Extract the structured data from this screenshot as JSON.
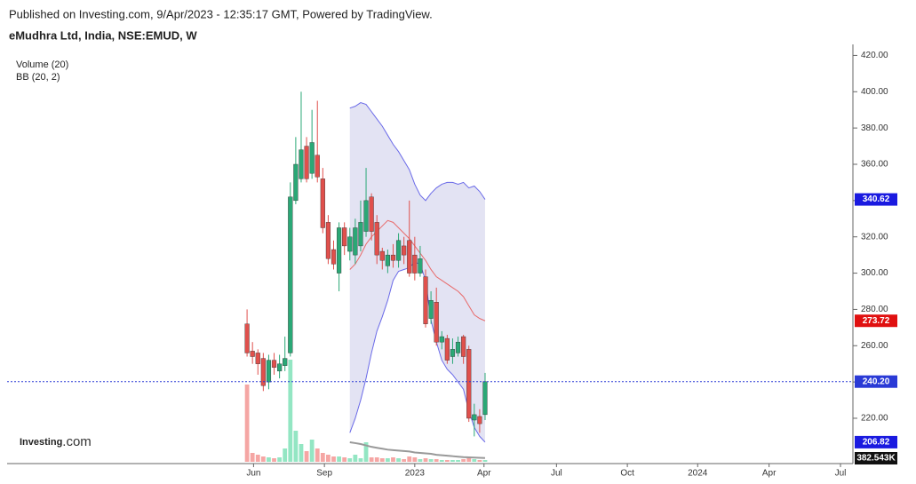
{
  "chart_data": {
    "type": "candlestick",
    "source": "Published on Investing.com, 9/Apr/2023 - 12:35:17 GMT, Powered by TradingView.",
    "title": "eMudhra Ltd, India, NSE:EMUD, W",
    "indicators": [
      "Volume (20)",
      "BB (20, 2)"
    ],
    "logo": {
      "brand": "Investing",
      "suffix": ".com"
    },
    "xlim": [
      -1,
      112
    ],
    "xticks": [
      {
        "value": 1.2,
        "label": "Jun"
      },
      {
        "value": 14.3,
        "label": "Sep"
      },
      {
        "value": 31,
        "label": "2023"
      },
      {
        "value": 43.8,
        "label": "Apr"
      },
      {
        "value": 57.2,
        "label": "Jul"
      },
      {
        "value": 70.3,
        "label": "Oct"
      },
      {
        "value": 83.3,
        "label": "2024"
      },
      {
        "value": 96.5,
        "label": "Apr"
      },
      {
        "value": 109.7,
        "label": "Jul"
      }
    ],
    "ylim": [
      196,
      430
    ],
    "yticks": [
      {
        "value": 220,
        "label": "220.00"
      },
      {
        "value": 240,
        "label": "240.00"
      },
      {
        "value": 260,
        "label": "260.00"
      },
      {
        "value": 280,
        "label": "280.00"
      },
      {
        "value": 300,
        "label": "300.00"
      },
      {
        "value": 320,
        "label": "320.00"
      },
      {
        "value": 340,
        "label": "340.00"
      },
      {
        "value": 360,
        "label": "360.00"
      },
      {
        "value": 380,
        "label": "380.00"
      },
      {
        "value": 400,
        "label": "400.00"
      },
      {
        "value": 420,
        "label": "420.00"
      }
    ],
    "up_color": "#2aa876",
    "down_color": "#e0504c",
    "up_volume_color": "#93e6c3",
    "down_volume_color": "#f5a6a4",
    "open": [
      272,
      257,
      256,
      253,
      240,
      252,
      246,
      249,
      256,
      340,
      352,
      370,
      355,
      365,
      352,
      328,
      313,
      300,
      325,
      312,
      310,
      315,
      323,
      342,
      328,
      312,
      304,
      310,
      307,
      315,
      318,
      310,
      300,
      298,
      275,
      284,
      262,
      264,
      254,
      256,
      265,
      258,
      219,
      221,
      222
    ],
    "high": [
      280,
      262,
      258,
      256,
      255,
      256,
      255,
      265,
      350,
      375,
      400,
      375,
      390,
      395,
      358,
      332,
      318,
      328,
      328,
      325,
      330,
      340,
      358,
      344,
      332,
      314,
      313,
      316,
      322,
      320,
      340,
      320,
      315,
      302,
      290,
      292,
      268,
      266,
      264,
      265,
      266,
      260,
      228,
      225,
      245
    ],
    "low": [
      254,
      250,
      244,
      235,
      236,
      244,
      242,
      246,
      254,
      338,
      350,
      350,
      352,
      350,
      322,
      305,
      302,
      290,
      310,
      307,
      305,
      312,
      320,
      318,
      305,
      302,
      300,
      303,
      303,
      305,
      298,
      296,
      298,
      270,
      272,
      260,
      258,
      250,
      250,
      254,
      250,
      218,
      210,
      212,
      219
    ],
    "close": [
      256,
      254,
      250,
      238,
      252,
      248,
      250,
      253,
      342,
      360,
      368,
      352,
      372,
      353,
      325,
      308,
      305,
      325,
      315,
      320,
      325,
      328,
      340,
      323,
      310,
      307,
      310,
      307,
      318,
      310,
      300,
      300,
      308,
      272,
      285,
      262,
      265,
      252,
      258,
      262,
      254,
      220,
      222,
      217,
      240.2
    ],
    "last_label": "240.20",
    "last_color": "#2a3ad6",
    "volume": {
      "values": [
        16530000,
        1900000,
        1520000,
        1140000,
        950000,
        760000,
        950000,
        2850000,
        21850000,
        6650000,
        3800000,
        2280000,
        4750000,
        2850000,
        1900000,
        1520000,
        1140000,
        1140000,
        950000,
        760000,
        1520000,
        760000,
        4180000,
        950000,
        950000,
        760000,
        760000,
        950000,
        760000,
        570000,
        1140000,
        950000,
        570000,
        760000,
        570000,
        570000,
        380000,
        380000,
        380000,
        380000,
        570000,
        760000,
        570000,
        380000,
        382543
      ],
      "last_label": "382.543K",
      "last_color": "#111111",
      "ma": [
        null,
        null,
        null,
        null,
        null,
        null,
        null,
        null,
        null,
        null,
        null,
        null,
        null,
        null,
        null,
        null,
        null,
        null,
        null,
        4180000,
        4000000,
        3800000,
        3500000,
        3200000,
        3000000,
        2800000,
        2600000,
        2500000,
        2400000,
        2300000,
        2200000,
        2000000,
        1900000,
        1800000,
        1700000,
        1500000,
        1400000,
        1300000,
        1200000,
        1100000,
        1000000,
        950000,
        900000,
        850000,
        800000
      ],
      "ma_color": "#999999"
    },
    "bands": [
      {
        "color": "#6a6ae8",
        "last_label": "340.62",
        "tag_color": "#1a1ae0",
        "values": [
          null,
          null,
          null,
          null,
          null,
          null,
          null,
          null,
          null,
          null,
          null,
          null,
          null,
          null,
          null,
          null,
          null,
          null,
          null,
          391,
          392,
          394,
          393,
          389,
          385,
          381,
          376,
          371,
          367,
          362,
          357,
          349,
          343,
          340,
          344,
          347,
          349,
          350,
          350,
          349,
          350,
          347,
          348,
          345,
          340.62
        ]
      },
      {
        "color": "#e86a6a",
        "last_label": "273.72",
        "tag_color": "#e01010",
        "values": [
          null,
          null,
          null,
          null,
          null,
          null,
          null,
          null,
          null,
          null,
          null,
          null,
          null,
          null,
          null,
          null,
          null,
          null,
          null,
          302,
          305,
          310,
          316,
          320,
          323,
          326,
          329,
          328,
          325,
          322,
          319,
          315,
          311,
          307,
          302,
          298,
          296,
          294,
          292,
          290,
          287,
          282,
          277,
          275,
          273.72
        ]
      },
      {
        "color": "#6a6ae8",
        "last_label": "206.82",
        "tag_color": "#1a1ae0",
        "values": [
          null,
          null,
          null,
          null,
          null,
          null,
          null,
          null,
          null,
          null,
          null,
          null,
          null,
          null,
          null,
          null,
          null,
          null,
          null,
          212,
          220,
          230,
          242,
          256,
          268,
          276,
          285,
          296,
          301,
          302,
          303,
          306,
          305,
          296,
          274,
          262,
          252,
          247,
          244,
          240,
          236,
          224,
          215,
          210,
          206.82
        ]
      }
    ],
    "band_fill": "#e3e3f3"
  }
}
